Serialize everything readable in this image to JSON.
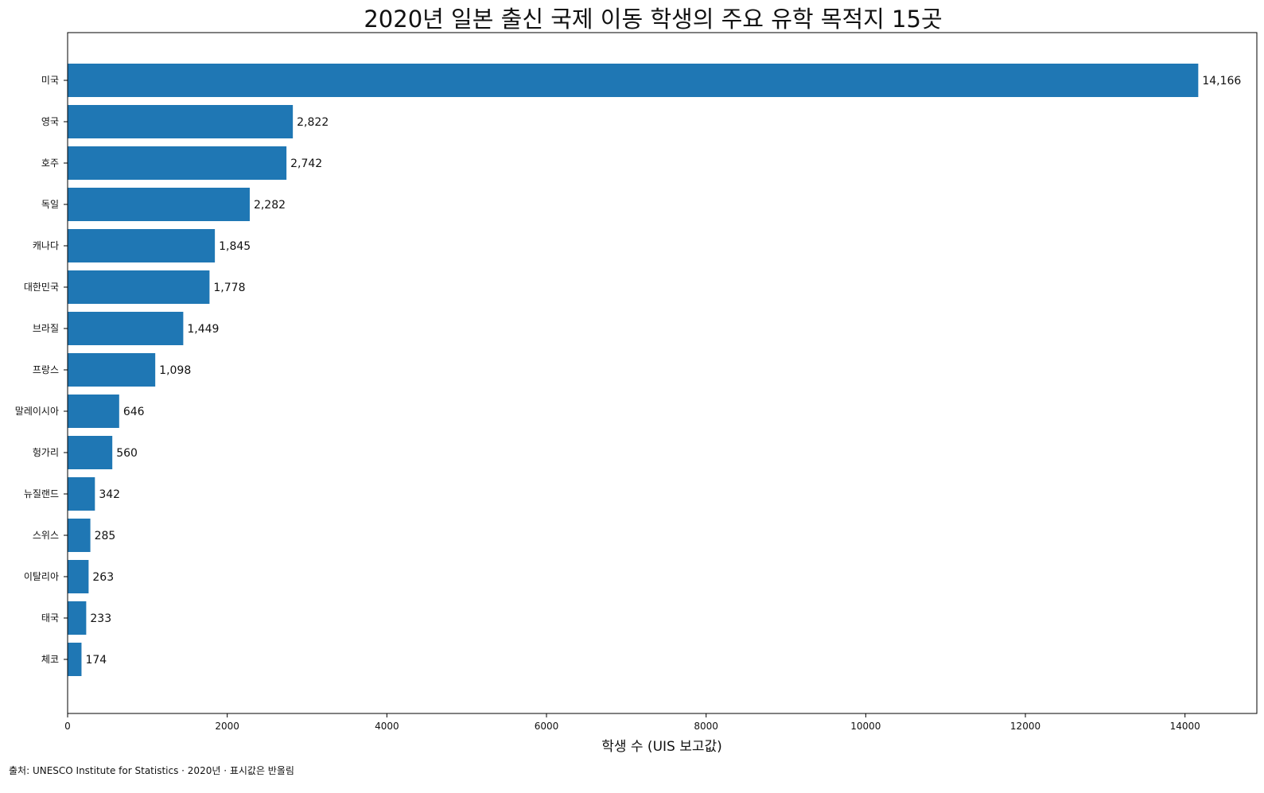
{
  "chart_data": {
    "type": "bar",
    "orientation": "horizontal",
    "title": "2020년 일본 출신 국제 이동 학생의 주요 유학 목적지 15곳",
    "xlabel": "학생 수 (UIS 보고값)",
    "ylabel": "",
    "xlim": [
      0,
      14900
    ],
    "xticks": [
      0,
      2000,
      4000,
      6000,
      8000,
      10000,
      12000,
      14000
    ],
    "xtick_labels": [
      "0",
      "2000",
      "4000",
      "6000",
      "8000",
      "10000",
      "12000",
      "14000"
    ],
    "grid": false,
    "categories": [
      "미국",
      "영국",
      "호주",
      "독일",
      "캐나다",
      "대한민국",
      "브라질",
      "프랑스",
      "말레이시아",
      "헝가리",
      "뉴질랜드",
      "스위스",
      "이탈리아",
      "태국",
      "체코"
    ],
    "values": [
      14166,
      2822,
      2742,
      2282,
      1845,
      1778,
      1449,
      1098,
      646,
      560,
      342,
      285,
      263,
      233,
      174
    ],
    "data_labels": [
      "14,166",
      "2,822",
      "2,742",
      "2,282",
      "1,845",
      "1,778",
      "1,449",
      "1,098",
      "646",
      "560",
      "342",
      "285",
      "263",
      "233",
      "174"
    ],
    "bar_color": "#1f77b4"
  },
  "footer": {
    "source": "출처: UNESCO Institute for Statistics · 2020년 · 표시값은 반올림"
  }
}
